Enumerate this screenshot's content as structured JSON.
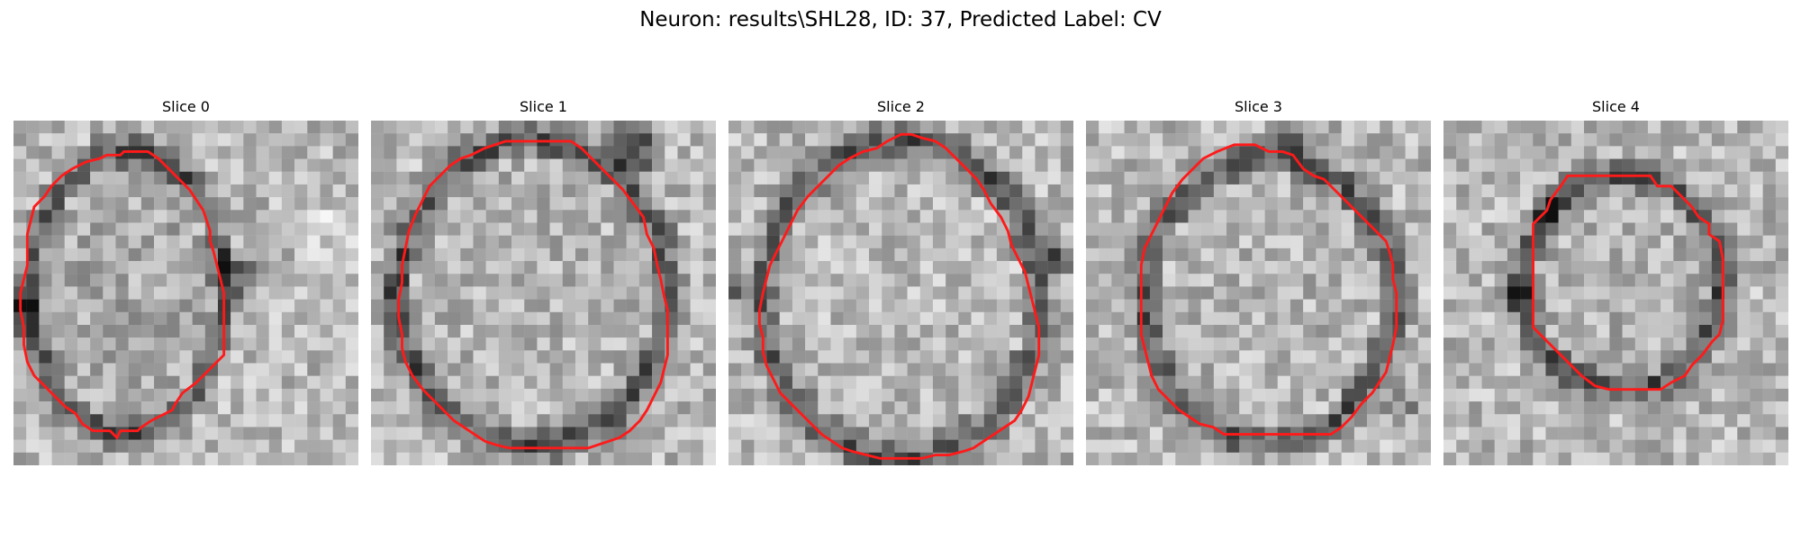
{
  "figure": {
    "title": "Neuron: results\\SHL28, ID: 37, Predicted Label: CV",
    "outline_color": "#ff1a1a",
    "panels": [
      {
        "label": "Slice 0"
      },
      {
        "label": "Slice 1"
      },
      {
        "label": "Slice 2"
      },
      {
        "label": "Slice 3"
      },
      {
        "label": "Slice 4"
      }
    ]
  }
}
